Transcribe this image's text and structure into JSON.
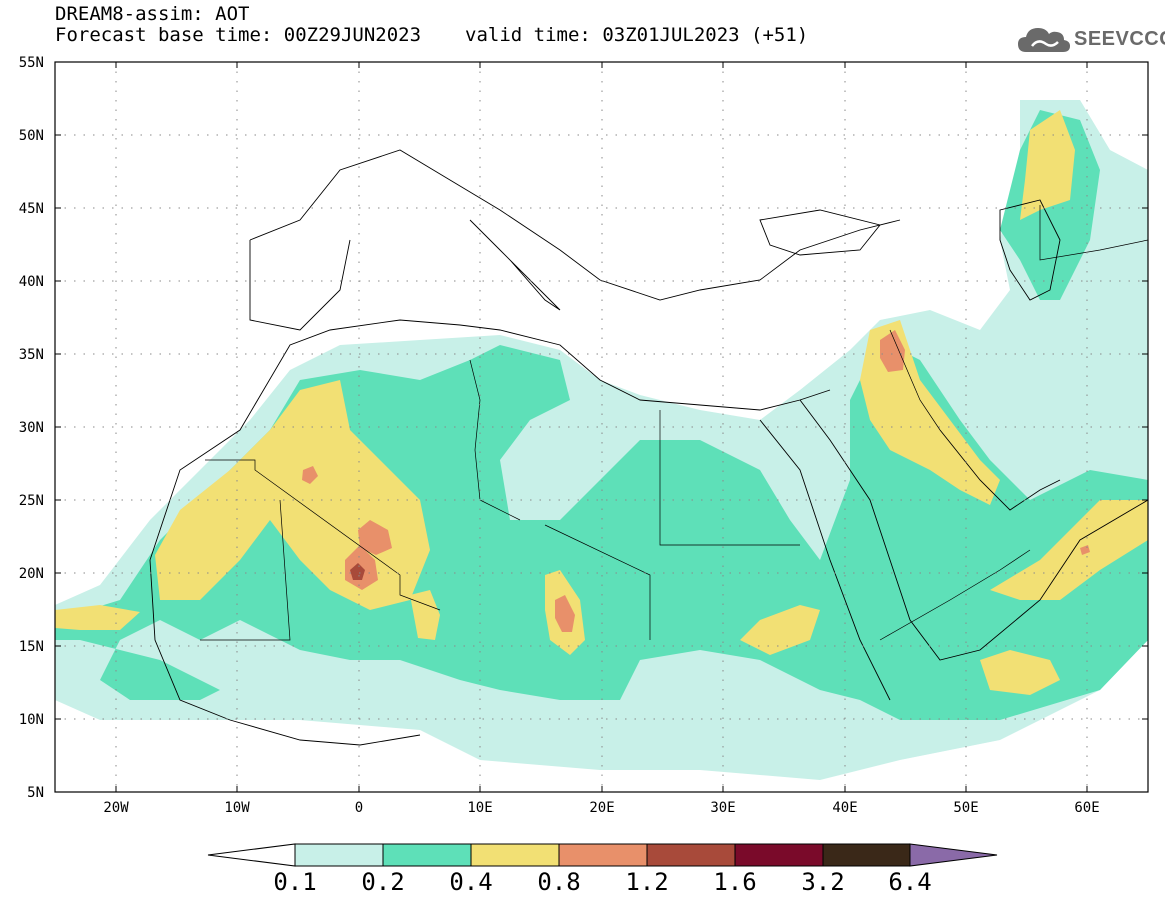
{
  "header": {
    "title": "DREAM8-assim: AOT",
    "base_time": "Forecast base time: 00Z29JUN2023",
    "valid_time": "valid time: 03Z01JUL2023 (+51)"
  },
  "logo": {
    "text": "SEEVCCC",
    "icon": "cloud-icon"
  },
  "map": {
    "variable": "AOT",
    "lon_range": [
      -25,
      65
    ],
    "lat_range": [
      5,
      55
    ],
    "lon_ticks": [
      "20W",
      "10W",
      "0",
      "10E",
      "20E",
      "30E",
      "40E",
      "50E",
      "60E"
    ],
    "lat_ticks": [
      "55N",
      "50N",
      "45N",
      "40N",
      "35N",
      "30N",
      "25N",
      "20N",
      "15N",
      "10N",
      "5N"
    ],
    "gridlines": "dotted"
  },
  "colorbar": {
    "levels": [
      "0.1",
      "0.2",
      "0.4",
      "0.8",
      "1.2",
      "1.6",
      "3.2",
      "6.4"
    ],
    "colors": [
      "#ffffff",
      "#c8f0e8",
      "#5ee0b8",
      "#f2e074",
      "#e8906a",
      "#a84a3a",
      "#7a0a2a",
      "#3a2818",
      "#8a6aa8"
    ]
  }
}
